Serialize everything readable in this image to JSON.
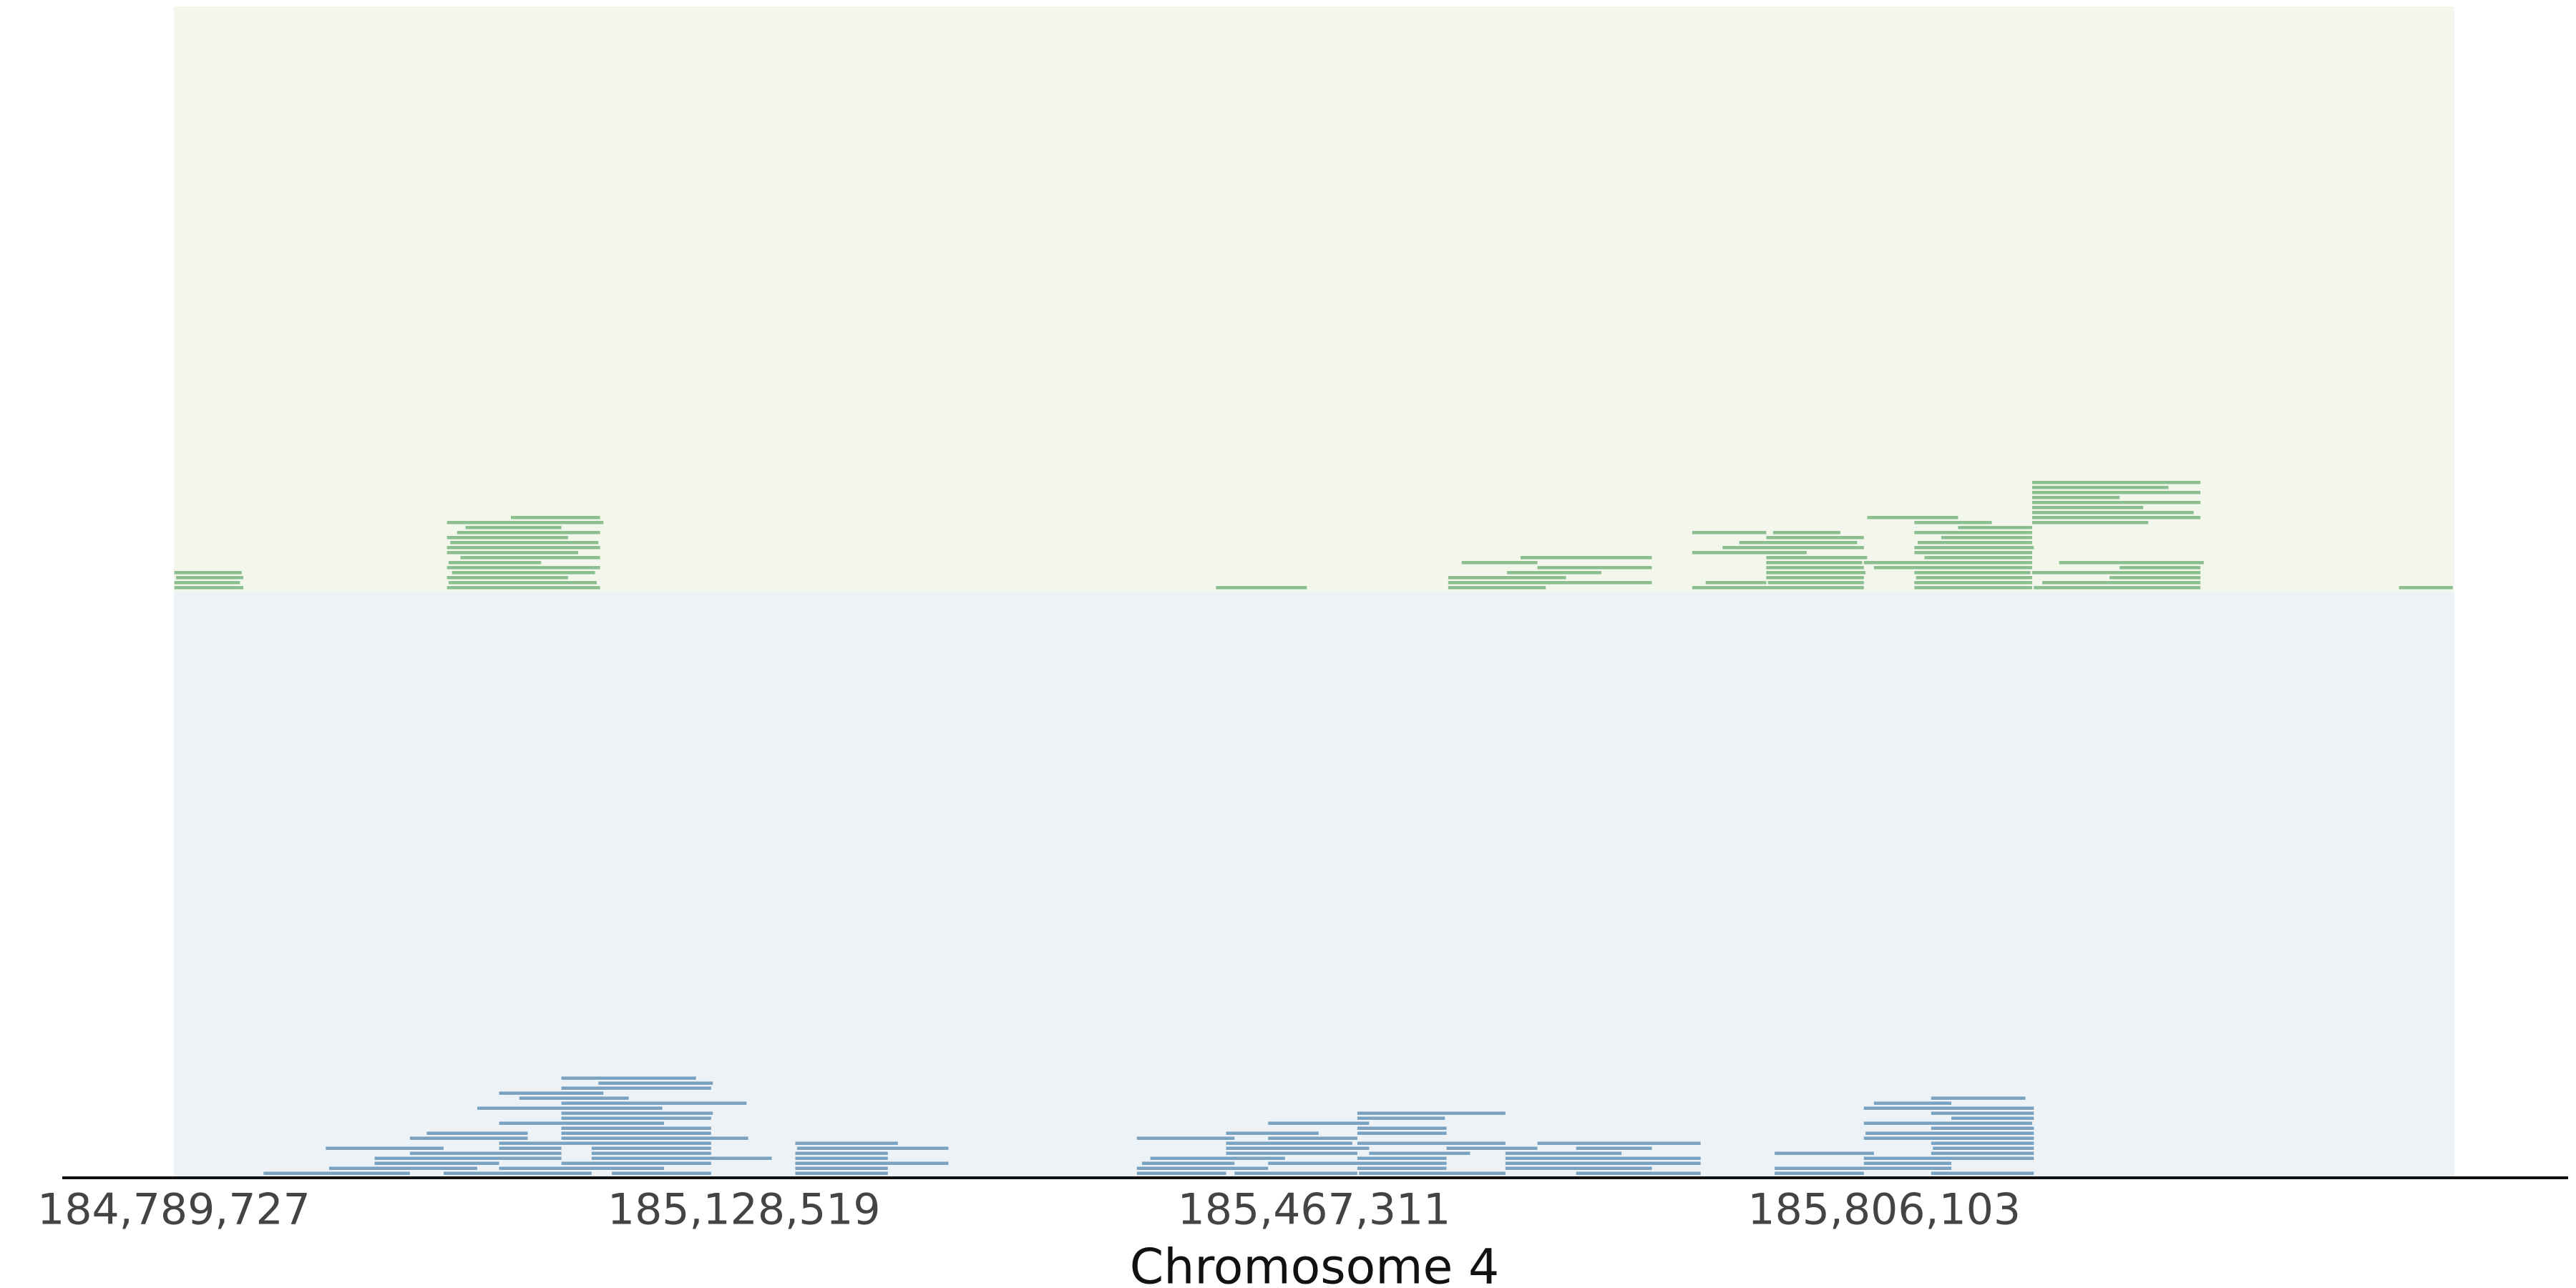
{
  "chart_data": {
    "type": "reads",
    "xlabel": "Chromosome 4",
    "xlim": [
      184789727,
      186144895
    ],
    "xticks": [
      {
        "value": 184789727,
        "label": "184,789,727"
      },
      {
        "value": 185128519,
        "label": "185,128,519"
      },
      {
        "value": 185467311,
        "label": "185,467,311"
      },
      {
        "value": 185806103,
        "label": "185,806,103"
      }
    ],
    "tracks": [
      {
        "color": "#8cbf8f",
        "background": "#f2f6eb",
        "reads": [
          [
            184790000,
            184831000
          ],
          [
            184790000,
            184829000
          ],
          [
            184791000,
            184831000
          ],
          [
            184790000,
            184830000
          ],
          [
            184952000,
            185043000
          ],
          [
            184953000,
            185041000
          ],
          [
            184952000,
            185024000
          ],
          [
            184955000,
            185040000
          ],
          [
            184952000,
            185043000
          ],
          [
            184953000,
            185008000
          ],
          [
            184960000,
            185043000
          ],
          [
            184952000,
            185030000
          ],
          [
            184952000,
            185043000
          ],
          [
            184954000,
            185042000
          ],
          [
            184952000,
            185024000
          ],
          [
            184958000,
            185043000
          ],
          [
            184963000,
            185020000
          ],
          [
            184952000,
            185045000
          ],
          [
            184990000,
            185043000
          ],
          [
            185409000,
            185463000
          ],
          [
            185547000,
            185605000
          ],
          [
            185547000,
            185668000
          ],
          [
            185547000,
            185617000
          ],
          [
            185582000,
            185638000
          ],
          [
            185600000,
            185668000
          ],
          [
            185555000,
            185600000
          ],
          [
            185590000,
            185668000
          ],
          [
            185692000,
            185794000
          ],
          [
            185700000,
            185736000
          ],
          [
            185736000,
            185794000
          ],
          [
            185736000,
            185795000
          ],
          [
            185736000,
            185794000
          ],
          [
            185737000,
            185794000
          ],
          [
            185736000,
            185793000
          ],
          [
            185736000,
            185796000
          ],
          [
            185692000,
            185760000
          ],
          [
            185710000,
            185794000
          ],
          [
            185720000,
            185790000
          ],
          [
            185736000,
            185794000
          ],
          [
            185740000,
            185780000
          ],
          [
            185692000,
            185736000
          ],
          [
            185794000,
            185894000
          ],
          [
            185824000,
            185894000
          ],
          [
            185824000,
            185894000
          ],
          [
            185825000,
            185894000
          ],
          [
            185824000,
            185893000
          ],
          [
            185800000,
            185894000
          ],
          [
            185830000,
            185894000
          ],
          [
            185824000,
            185894000
          ],
          [
            185824000,
            185895000
          ],
          [
            185826000,
            185894000
          ],
          [
            185840000,
            185894000
          ],
          [
            185824000,
            185894000
          ],
          [
            185850000,
            185894000
          ],
          [
            185824000,
            185870000
          ],
          [
            185796000,
            185850000
          ],
          [
            185894000,
            185994000
          ],
          [
            185894000,
            185963000
          ],
          [
            185894000,
            185994000
          ],
          [
            185895000,
            185994000
          ],
          [
            185894000,
            185990000
          ],
          [
            185894000,
            185960000
          ],
          [
            185900000,
            185994000
          ],
          [
            185894000,
            185994000
          ],
          [
            185894000,
            185946000
          ],
          [
            185940000,
            185994000
          ],
          [
            185894000,
            185994000
          ],
          [
            185946000,
            185994000
          ],
          [
            185894000,
            185975000
          ],
          [
            185894000,
            185994000
          ],
          [
            185910000,
            185996000
          ],
          [
            186112000,
            186144000
          ]
        ]
      },
      {
        "color": "#7aa3c2",
        "background": "#edf2f7",
        "reads": [
          [
            184843000,
            184930000
          ],
          [
            184882000,
            184970000
          ],
          [
            184909000,
            184983000
          ],
          [
            184909000,
            185020000
          ],
          [
            184930000,
            185020000
          ],
          [
            184950000,
            185038000
          ],
          [
            184983000,
            185081000
          ],
          [
            184983000,
            185020000
          ],
          [
            184983000,
            185109000
          ],
          [
            185020000,
            185109000
          ],
          [
            185020000,
            185131000
          ],
          [
            185020000,
            185109000
          ],
          [
            185038000,
            185145000
          ],
          [
            185020000,
            185109000
          ],
          [
            185038000,
            185109000
          ],
          [
            184983000,
            185081000
          ],
          [
            185020000,
            185109000
          ],
          [
            185020000,
            185110000
          ],
          [
            184970000,
            185080000
          ],
          [
            184930000,
            185000000
          ],
          [
            185038000,
            185109000
          ],
          [
            185020000,
            185130000
          ],
          [
            184995000,
            185060000
          ],
          [
            185050000,
            185109000
          ],
          [
            184983000,
            185045000
          ],
          [
            185020000,
            185109000
          ],
          [
            184880000,
            184950000
          ],
          [
            184940000,
            185000000
          ],
          [
            185042000,
            185110000
          ],
          [
            185020000,
            185100000
          ],
          [
            185159000,
            185214000
          ],
          [
            185159000,
            185214000
          ],
          [
            185159000,
            185250000
          ],
          [
            185159000,
            185214000
          ],
          [
            185159000,
            185214000
          ],
          [
            185160000,
            185250000
          ],
          [
            185159000,
            185220000
          ],
          [
            185362000,
            185415000
          ],
          [
            185362000,
            185440000
          ],
          [
            185365000,
            185420000
          ],
          [
            185370000,
            185450000
          ],
          [
            185415000,
            185493000
          ],
          [
            185415000,
            185500000
          ],
          [
            185420000,
            185493000
          ],
          [
            185415000,
            185490000
          ],
          [
            185440000,
            185546000
          ],
          [
            185440000,
            185493000
          ],
          [
            185493000,
            185546000
          ],
          [
            185493000,
            185546000
          ],
          [
            185493000,
            185581000
          ],
          [
            185493000,
            185546000
          ],
          [
            185494000,
            185581000
          ],
          [
            185500000,
            185560000
          ],
          [
            185493000,
            185546000
          ],
          [
            185581000,
            185668000
          ],
          [
            185581000,
            185697000
          ],
          [
            185581000,
            185697000
          ],
          [
            185623000,
            185697000
          ],
          [
            185581000,
            185650000
          ],
          [
            185623000,
            185668000
          ],
          [
            185415000,
            185470000
          ],
          [
            185440000,
            185500000
          ],
          [
            185493000,
            185545000
          ],
          [
            185546000,
            185600000
          ],
          [
            185362000,
            185420000
          ],
          [
            185600000,
            185697000
          ],
          [
            185493000,
            185581000
          ],
          [
            185741000,
            185794000
          ],
          [
            185741000,
            185846000
          ],
          [
            185794000,
            185846000
          ],
          [
            185794000,
            185895000
          ],
          [
            185834000,
            185895000
          ],
          [
            185834000,
            185895000
          ],
          [
            185835000,
            185895000
          ],
          [
            185834000,
            185895000
          ],
          [
            185794000,
            185895000
          ],
          [
            185795000,
            185895000
          ],
          [
            185834000,
            185895000
          ],
          [
            185741000,
            185800000
          ],
          [
            185794000,
            185894000
          ],
          [
            185846000,
            185895000
          ],
          [
            185834000,
            185895000
          ],
          [
            185794000,
            185895000
          ],
          [
            185800000,
            185846000
          ],
          [
            185834000,
            185890000
          ]
        ]
      }
    ]
  }
}
